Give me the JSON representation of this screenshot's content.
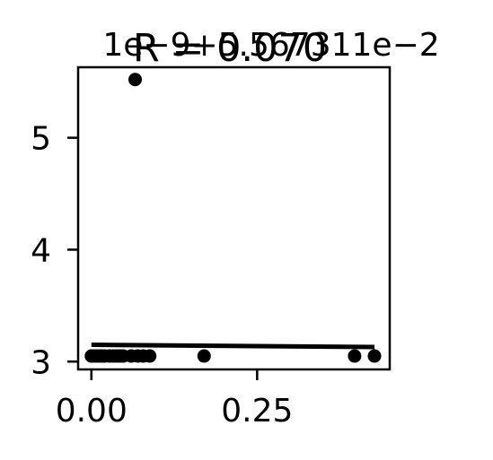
{
  "chart_data": {
    "type": "scatter",
    "title": "R = 0.070",
    "offset_label": "1e−9+5.567311e−2",
    "xlabel": "",
    "ylabel": "",
    "xlim": [
      -0.02,
      0.45
    ],
    "ylim": [
      2.93,
      5.63
    ],
    "xticks": [
      {
        "value": 0.0,
        "label": "0.00"
      },
      {
        "value": 0.25,
        "label": "0.25"
      }
    ],
    "yticks": [
      {
        "value": 3,
        "label": "3"
      },
      {
        "value": 4,
        "label": "4"
      },
      {
        "value": 5,
        "label": "5"
      }
    ],
    "points": [
      {
        "x": 0.0,
        "y": 3.05
      },
      {
        "x": 0.005,
        "y": 3.05
      },
      {
        "x": 0.01,
        "y": 3.05
      },
      {
        "x": 0.015,
        "y": 3.05
      },
      {
        "x": 0.02,
        "y": 3.05
      },
      {
        "x": 0.027,
        "y": 3.05
      },
      {
        "x": 0.033,
        "y": 3.05
      },
      {
        "x": 0.038,
        "y": 3.05
      },
      {
        "x": 0.043,
        "y": 3.05
      },
      {
        "x": 0.048,
        "y": 3.05
      },
      {
        "x": 0.06,
        "y": 3.05
      },
      {
        "x": 0.066,
        "y": 5.52
      },
      {
        "x": 0.07,
        "y": 3.05
      },
      {
        "x": 0.078,
        "y": 3.05
      },
      {
        "x": 0.088,
        "y": 3.05
      },
      {
        "x": 0.17,
        "y": 3.05
      },
      {
        "x": 0.397,
        "y": 3.05
      },
      {
        "x": 0.427,
        "y": 3.05
      }
    ],
    "fit_line": {
      "x": [
        0.0,
        0.427
      ],
      "y": [
        3.15,
        3.13
      ]
    },
    "grid": false,
    "legend": "none",
    "colors": {
      "points": "#000000",
      "line": "#000000",
      "axes": "#000000"
    }
  }
}
